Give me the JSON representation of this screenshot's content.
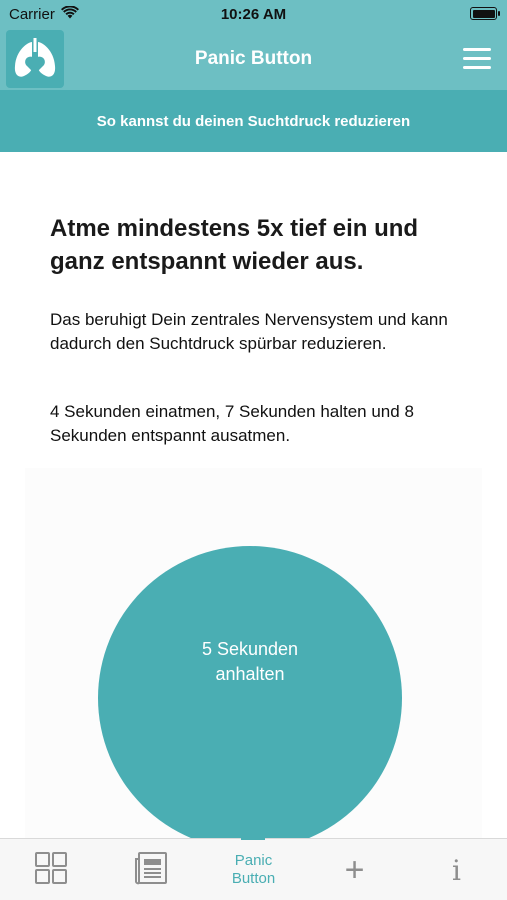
{
  "status_bar": {
    "carrier": "Carrier",
    "time": "10:26 AM",
    "battery_level": 1.0
  },
  "nav": {
    "title": "Panic Button",
    "logo_icon": "lungs-heart-logo-icon",
    "menu_icon": "hamburger-menu-icon"
  },
  "subheader": {
    "text": "So kannst du deinen Suchtdruck reduzieren"
  },
  "content": {
    "headline": "Atme mindestens 5x tief ein und ganz entspannt wieder aus.",
    "paragraph1": "Das beruhigt Dein zentrales Nervensystem und kann dadurch den Suchtdruck spürbar reduzieren.",
    "paragraph2": "4 Sekunden einatmen, 7 Sekunden halten und 8 Sekunden entspannt ausatmen.",
    "breath_line1": "5 Sekunden",
    "breath_line2": "anhalten"
  },
  "tab_bar": {
    "items": [
      {
        "icon": "grid-icon",
        "label": ""
      },
      {
        "icon": "news-icon",
        "label": ""
      },
      {
        "icon": "",
        "label_line1": "Panic",
        "label_line2": "Button",
        "active": true
      },
      {
        "icon": "plus-icon",
        "glyph": "+"
      },
      {
        "icon": "info-icon",
        "glyph": "i"
      }
    ]
  },
  "colors": {
    "header": "#6dbfc3",
    "accent": "#4aaeb3",
    "tab_inactive": "#8e8e8e"
  }
}
